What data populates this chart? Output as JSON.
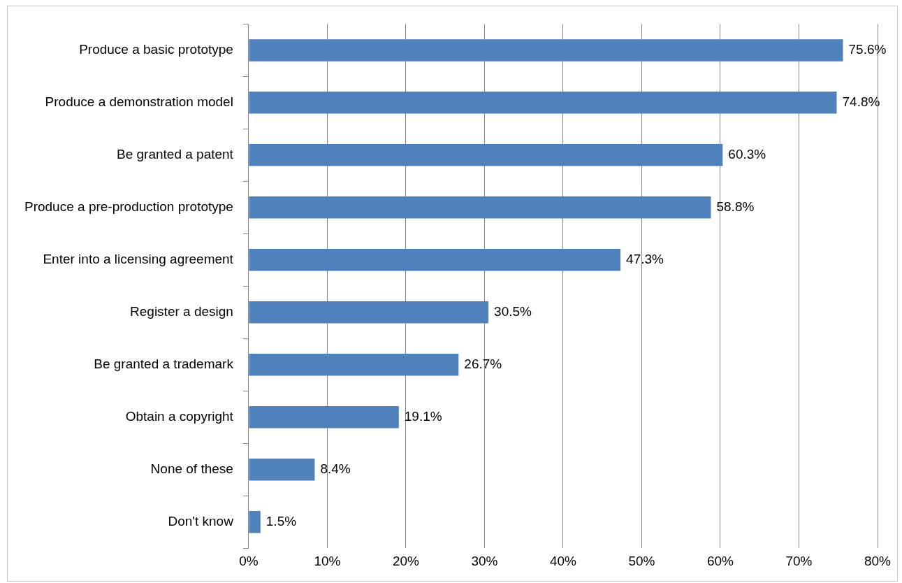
{
  "chart_data": {
    "type": "bar",
    "orientation": "horizontal",
    "color": "#4f81bd",
    "categories": [
      "Produce a basic prototype",
      "Produce a demonstration model",
      "Be granted a patent",
      "Produce a pre-production prototype",
      "Enter into a licensing agreement",
      "Register a design",
      "Be granted a trademark",
      "Obtain a copyright",
      "None of these",
      "Don't know"
    ],
    "values": [
      75.6,
      74.8,
      60.3,
      58.8,
      47.3,
      30.5,
      26.7,
      19.1,
      8.4,
      1.5
    ],
    "value_labels": [
      "75.6%",
      "74.8%",
      "60.3%",
      "58.8%",
      "47.3%",
      "30.5%",
      "26.7%",
      "19.1%",
      "8.4%",
      "1.5%"
    ],
    "xlim": [
      0,
      80
    ],
    "xticks": [
      {
        "value": 0,
        "label": "0%"
      },
      {
        "value": 10,
        "label": "10%"
      },
      {
        "value": 20,
        "label": "20%"
      },
      {
        "value": 30,
        "label": "30%"
      },
      {
        "value": 40,
        "label": "40%"
      },
      {
        "value": 50,
        "label": "50%"
      },
      {
        "value": 60,
        "label": "60%"
      },
      {
        "value": 70,
        "label": "70%"
      },
      {
        "value": 80,
        "label": "80%"
      }
    ],
    "grid": "x",
    "legend": false
  }
}
